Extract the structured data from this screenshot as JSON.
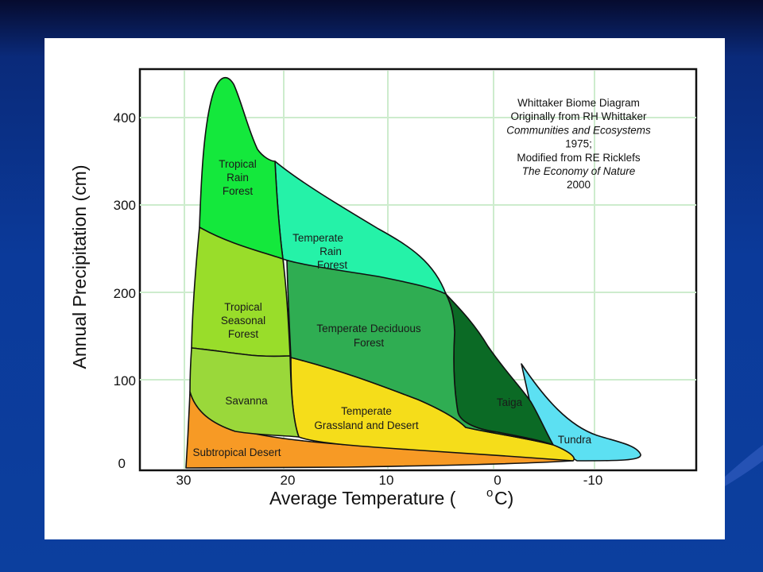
{
  "diagram": {
    "credits": [
      {
        "text": "Whittaker Biome Diagram",
        "italic": false
      },
      {
        "text": "Originally from RH Whittaker",
        "italic": false
      },
      {
        "text": "Communities and Ecosystems",
        "italic": true
      },
      {
        "text": "1975;",
        "italic": false
      },
      {
        "text": "Modified from RE Ricklefs",
        "italic": false
      },
      {
        "text": "The Economy of Nature",
        "italic": true
      },
      {
        "text": "2000",
        "italic": false
      }
    ],
    "y_axis": {
      "label": "Annual Precipitation (cm)",
      "ticks": [
        "400",
        "300",
        "200",
        "100",
        "0"
      ]
    },
    "x_axis": {
      "label_main": "Average Temperature (",
      "label_degree": "o",
      "label_unit": "C)",
      "ticks": [
        "30",
        "20",
        "10",
        "0",
        "-10"
      ]
    },
    "biomes": {
      "tropical_rain_forest": [
        "Tropical",
        "Rain",
        "Forest"
      ],
      "temperate_rain_forest": [
        "Temperate",
        "Rain",
        "Forest"
      ],
      "tropical_seasonal_forest": [
        "Tropical",
        "Seasonal",
        "Forest"
      ],
      "temperate_deciduous_forest": [
        "Temperate Deciduous",
        "Forest"
      ],
      "savanna": [
        "Savanna"
      ],
      "temperate_grassland_desert": [
        "Temperate",
        "Grassland and Desert"
      ],
      "taiga": [
        "Taiga"
      ],
      "tundra": [
        "Tundra"
      ],
      "subtropical_desert": [
        "Subtropical Desert"
      ]
    },
    "colors": {
      "tropical_rain_forest": "#14e83c",
      "temperate_rain_forest": "#25f2a8",
      "tropical_seasonal_forest": "#99dd2a",
      "temperate_deciduous_forest": "#2fad52",
      "savanna": "#9ad83a",
      "temperate_grassland_desert": "#f5dd1a",
      "taiga": "#0b6a25",
      "tundra": "#5ce0f2",
      "subtropical_desert": "#f79a25",
      "grid": "#cdeccd"
    }
  }
}
